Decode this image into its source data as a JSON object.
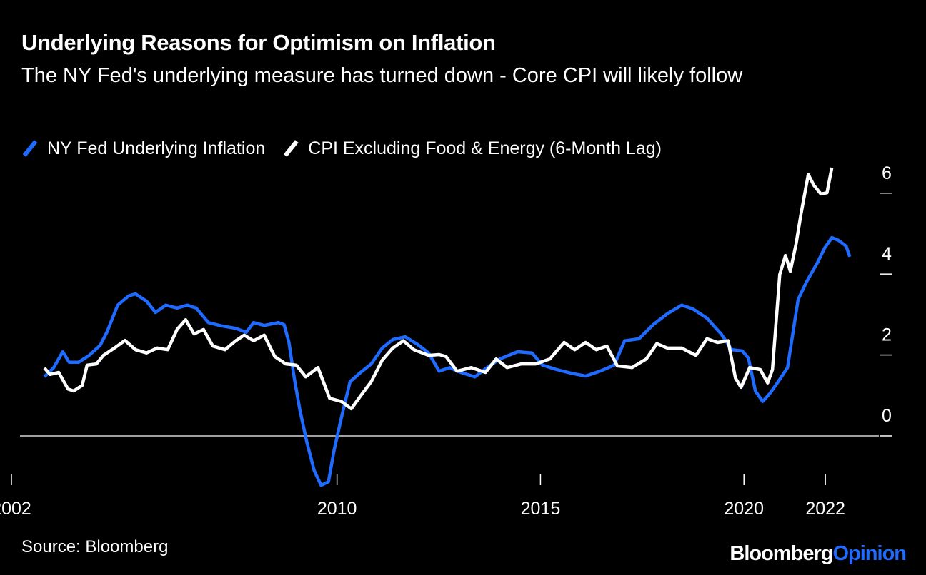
{
  "chart_data": {
    "type": "line",
    "title": "Underlying Reasons for Optimism on Inflation",
    "subtitle": "The NY Fed's underlying measure has turned down - Core CPI will likely follow",
    "source": "Source: Bloomberg",
    "logo": [
      "Bloomberg",
      "Opinion"
    ],
    "xlim": [
      2002,
      2022.7
    ],
    "xticks": [
      2002,
      2010,
      2015,
      2020,
      2022
    ],
    "ylim": [
      -1.3,
      6.8
    ],
    "yticks": [
      0,
      2,
      4,
      6
    ],
    "legend": "top-left",
    "series": [
      {
        "name": "NY Fed Underlying Inflation",
        "color": "#1f6bff",
        "x": [
          2002.81,
          2003.04,
          2003.26,
          2003.42,
          2003.65,
          2003.91,
          2004.18,
          2004.35,
          2004.61,
          2004.88,
          2005.05,
          2005.32,
          2005.54,
          2005.79,
          2006.07,
          2006.32,
          2006.54,
          2006.84,
          2007.16,
          2007.51,
          2007.77,
          2007.95,
          2008.21,
          2008.56,
          2008.7,
          2008.82,
          2008.95,
          2009.09,
          2009.26,
          2009.44,
          2009.61,
          2009.79,
          2009.93,
          2010.11,
          2010.32,
          2010.58,
          2010.84,
          2011.11,
          2011.37,
          2011.68,
          2011.98,
          2012.25,
          2012.51,
          2012.77,
          2013.04,
          2013.39,
          2013.65,
          2014.0,
          2014.44,
          2014.79,
          2015.05,
          2015.4,
          2015.75,
          2016.11,
          2016.46,
          2016.81,
          2017.07,
          2017.42,
          2017.77,
          2018.12,
          2018.47,
          2018.74,
          2019.09,
          2019.44,
          2019.7,
          2019.96,
          2020.11,
          2020.28,
          2020.46,
          2020.63,
          2020.84,
          2021.07,
          2021.33,
          2021.54,
          2021.81,
          2021.98,
          2022.16,
          2022.33,
          2022.51,
          2022.6
        ],
        "values": [
          1.46,
          1.69,
          2.08,
          1.82,
          1.82,
          1.99,
          2.24,
          2.57,
          3.23,
          3.46,
          3.51,
          3.33,
          3.05,
          3.23,
          3.16,
          3.23,
          3.16,
          2.8,
          2.72,
          2.66,
          2.56,
          2.8,
          2.73,
          2.8,
          2.75,
          2.31,
          1.43,
          0.63,
          -0.16,
          -0.86,
          -1.22,
          -1.13,
          -0.34,
          0.46,
          1.34,
          1.57,
          1.78,
          2.17,
          2.38,
          2.45,
          2.26,
          2.05,
          1.6,
          1.69,
          1.57,
          1.46,
          1.66,
          1.9,
          2.08,
          2.05,
          1.75,
          1.64,
          1.55,
          1.48,
          1.6,
          1.75,
          2.35,
          2.4,
          2.75,
          3.02,
          3.23,
          3.14,
          2.91,
          2.52,
          2.13,
          2.1,
          1.92,
          1.11,
          0.85,
          1.04,
          1.34,
          1.69,
          3.37,
          3.81,
          4.29,
          4.64,
          4.9,
          4.83,
          4.69,
          4.43
        ]
      },
      {
        "name": "CPI Excluding Food & Energy (6-Month Lag)",
        "color": "#ffffff",
        "x": [
          2002.81,
          2002.95,
          2003.16,
          2003.39,
          2003.53,
          2003.74,
          2003.86,
          2004.09,
          2004.26,
          2004.53,
          2004.79,
          2005.05,
          2005.32,
          2005.58,
          2005.84,
          2006.07,
          2006.28,
          2006.49,
          2006.72,
          2006.95,
          2007.25,
          2007.51,
          2007.72,
          2007.95,
          2008.21,
          2008.47,
          2008.74,
          2009.0,
          2009.23,
          2009.53,
          2009.82,
          2010.11,
          2010.35,
          2010.58,
          2010.84,
          2011.11,
          2011.37,
          2011.63,
          2011.89,
          2012.25,
          2012.51,
          2012.68,
          2012.95,
          2013.3,
          2013.65,
          2013.91,
          2014.18,
          2014.53,
          2014.88,
          2015.23,
          2015.58,
          2015.84,
          2016.11,
          2016.37,
          2016.63,
          2016.89,
          2017.25,
          2017.6,
          2017.86,
          2018.12,
          2018.47,
          2018.82,
          2019.09,
          2019.35,
          2019.61,
          2019.79,
          2019.93,
          2020.14,
          2020.4,
          2020.58,
          2020.7,
          2020.88,
          2021.02,
          2021.14,
          2021.28,
          2021.4,
          2021.58,
          2021.72,
          2021.89,
          2022.04,
          2022.16
        ],
        "values": [
          1.68,
          1.52,
          1.57,
          1.16,
          1.11,
          1.25,
          1.75,
          1.78,
          1.99,
          2.17,
          2.36,
          2.13,
          2.05,
          2.17,
          2.13,
          2.63,
          2.87,
          2.52,
          2.63,
          2.22,
          2.13,
          2.35,
          2.49,
          2.35,
          2.49,
          1.96,
          1.78,
          1.75,
          1.46,
          1.69,
          0.93,
          0.85,
          0.67,
          0.99,
          1.34,
          1.87,
          2.17,
          2.35,
          2.13,
          1.99,
          2.01,
          1.96,
          1.6,
          1.69,
          1.57,
          1.9,
          1.69,
          1.78,
          1.78,
          1.9,
          2.31,
          2.13,
          2.31,
          2.13,
          2.22,
          1.73,
          1.69,
          1.9,
          2.28,
          2.17,
          2.17,
          1.99,
          2.4,
          2.31,
          2.35,
          1.43,
          1.2,
          1.69,
          1.64,
          1.31,
          1.64,
          3.99,
          4.46,
          4.07,
          4.74,
          5.48,
          6.46,
          6.19,
          5.98,
          6.01,
          6.63
        ]
      }
    ]
  }
}
